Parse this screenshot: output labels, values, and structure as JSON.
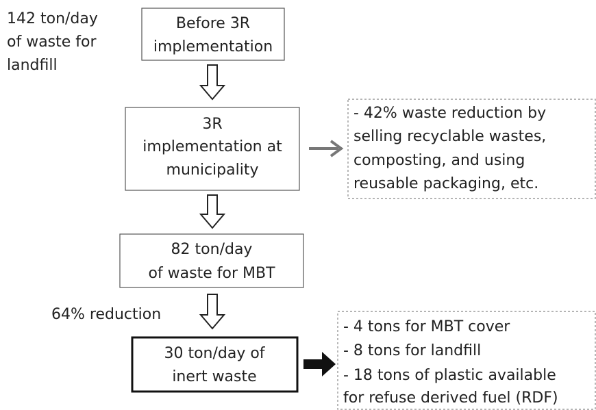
{
  "input_note": {
    "lines": [
      "142 ton/day",
      "of waste for",
      "landfill"
    ]
  },
  "nodes": [
    {
      "lines": [
        "Before 3R",
        "implementation"
      ]
    },
    {
      "lines": [
        "3R",
        "implementation at",
        "municipality"
      ]
    },
    {
      "lines": [
        "82 ton/day",
        "of waste for MBT"
      ]
    },
    {
      "lines": [
        "30 ton/day of",
        "inert waste"
      ]
    }
  ],
  "side_notes": [
    {
      "lines": [
        "- 42% waste reduction by",
        "selling recyclable wastes,",
        "composting, and using",
        "reusable packaging, etc."
      ]
    },
    {
      "lines": [
        "- 4 tons for MBT cover",
        "- 8 tons for landfill",
        "- 18 tons of plastic available",
        "for refuse derived fuel (RDF)"
      ]
    }
  ],
  "reduction_label": "64% reduction"
}
